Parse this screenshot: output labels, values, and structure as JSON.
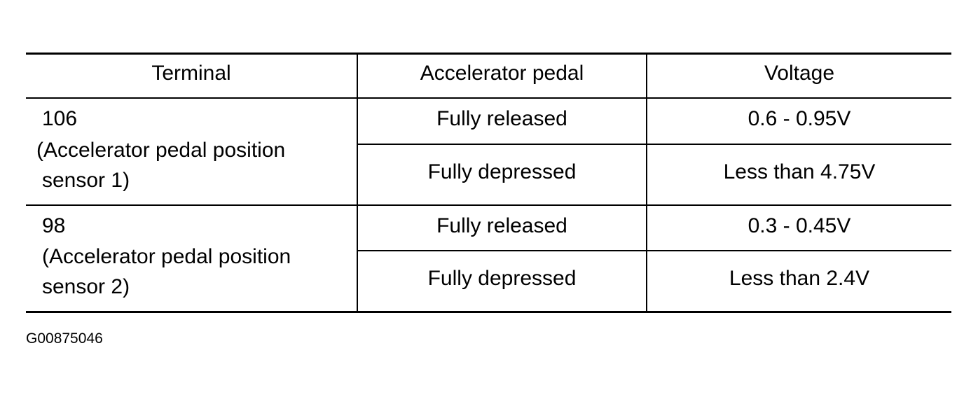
{
  "table": {
    "headers": [
      "Terminal",
      "Accelerator pedal",
      "Voltage"
    ],
    "groups": [
      {
        "terminal": "106",
        "description_line1": " (Accelerator pedal position",
        "description_line2": "sensor 1)",
        "rows": [
          {
            "pedal": "Fully released",
            "voltage": "0.6 - 0.95V"
          },
          {
            "pedal": "Fully depressed",
            "voltage": "Less than 4.75V"
          }
        ]
      },
      {
        "terminal": "98",
        "description_line1": "(Accelerator pedal position",
        "description_line2": "sensor 2)",
        "rows": [
          {
            "pedal": "Fully released",
            "voltage": "0.3 - 0.45V"
          },
          {
            "pedal": "Fully depressed",
            "voltage": "Less than 2.4V"
          }
        ]
      }
    ]
  },
  "figure_id": "G00875046"
}
